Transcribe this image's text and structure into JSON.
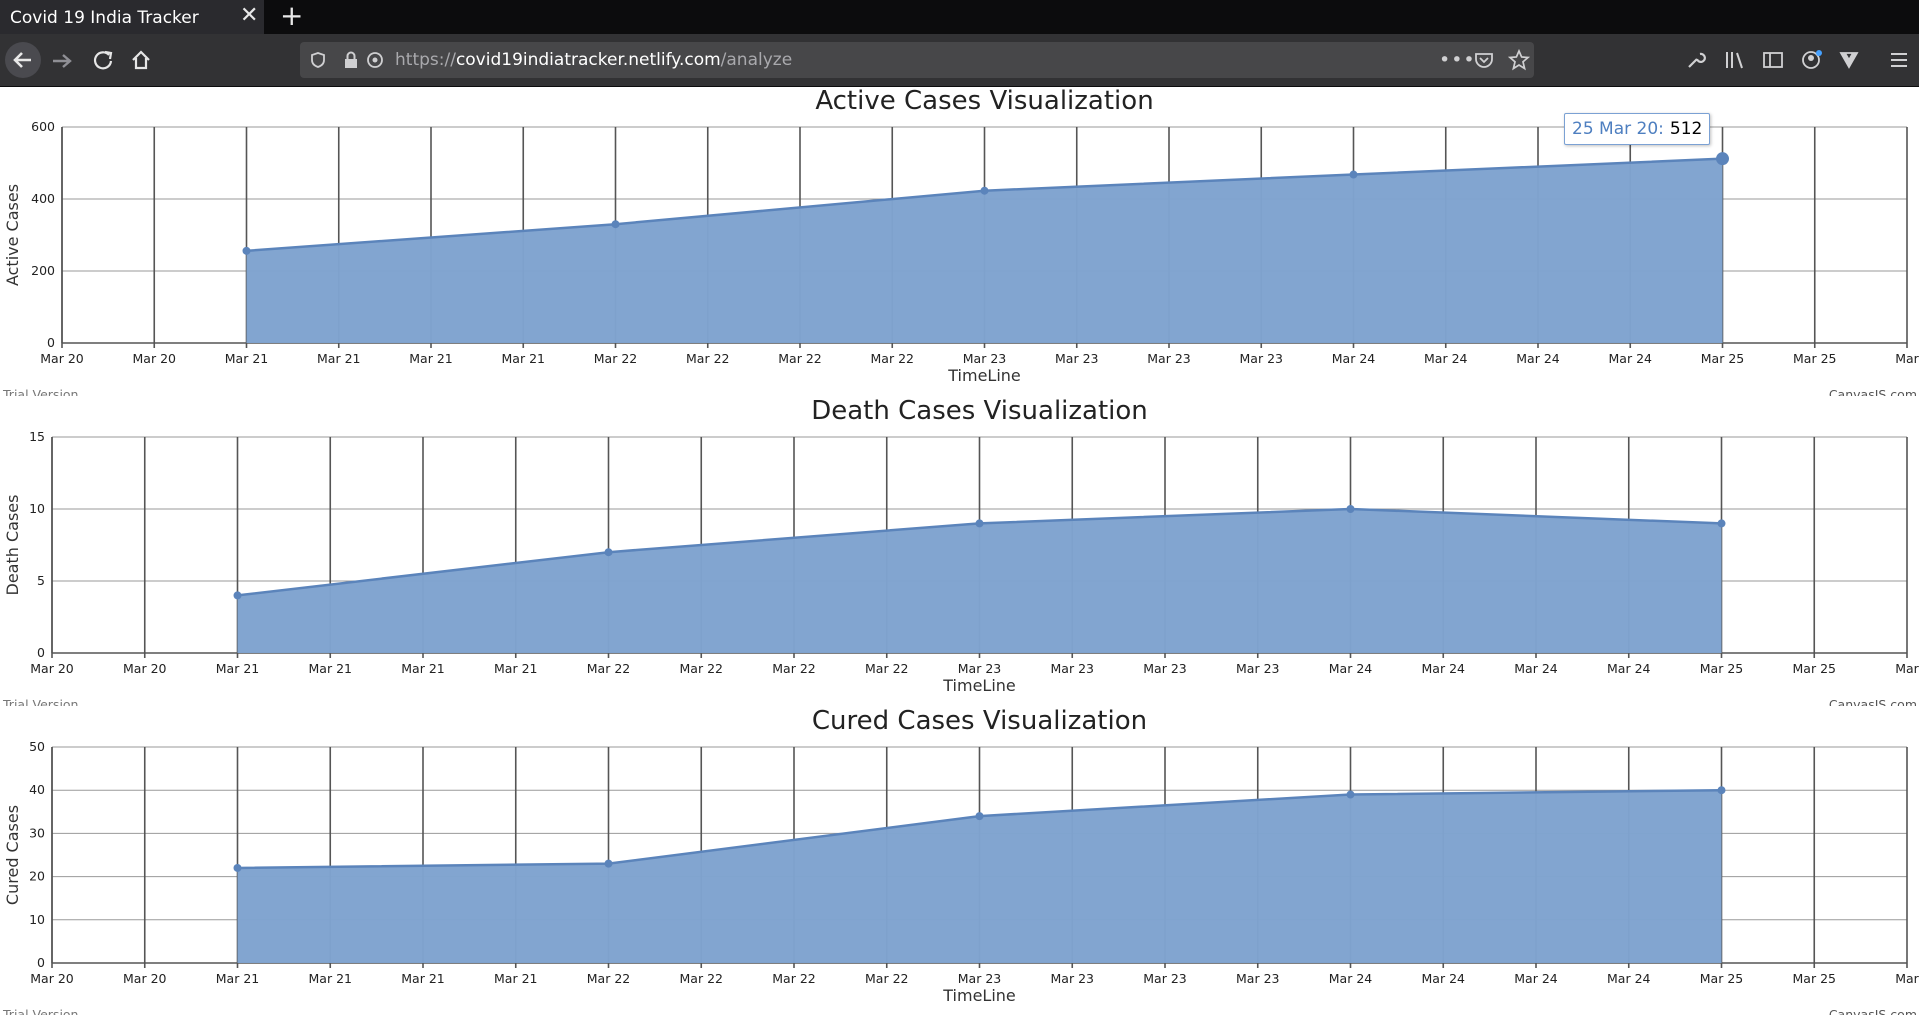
{
  "browser": {
    "tab_title": "Covid 19 India Tracker",
    "tab_close_icon": "close-icon",
    "new_tab_icon": "plus-icon",
    "url_prefix": "https://",
    "url_host": "covid19indiatracker.netlify.com",
    "url_path": "/analyze",
    "icons": [
      "back-arrow-icon",
      "forward-arrow-icon",
      "reload-icon",
      "home-icon",
      "shield-icon",
      "lock-icon",
      "permissions-icon",
      "more-icon",
      "pocket-icon",
      "star-icon",
      "wrench-icon",
      "library-icon",
      "sidebar-icon",
      "account-icon",
      "extension-icon",
      "menu-icon"
    ]
  },
  "tooltip": {
    "date": "25 Mar 20:",
    "value": "512"
  },
  "credits": {
    "left": "Trial Version",
    "right": "CanvasJS.com"
  },
  "colors": {
    "area_fill": "#7fa3cf",
    "line": "#5b84bb",
    "grid": "#505050"
  },
  "chart_data": [
    {
      "type": "area",
      "title": "Active Cases Visualization",
      "xlabel": "TimeLine",
      "ylabel": "Active Cases",
      "ylim": [
        0,
        600
      ],
      "yticks": [
        0,
        200,
        400,
        600
      ],
      "xticks": [
        "Mar 20",
        "Mar 20",
        "Mar 21",
        "Mar 21",
        "Mar 21",
        "Mar 21",
        "Mar 22",
        "Mar 22",
        "Mar 22",
        "Mar 22",
        "Mar 23",
        "Mar 23",
        "Mar 23",
        "Mar 23",
        "Mar 24",
        "Mar 24",
        "Mar 24",
        "Mar 24",
        "Mar 25",
        "Mar 25",
        "Mar"
      ],
      "x": [
        "Mar 21",
        "Mar 22",
        "Mar 23",
        "Mar 24",
        "Mar 25"
      ],
      "values": [
        256,
        330,
        423,
        468,
        512
      ]
    },
    {
      "type": "area",
      "title": "Death Cases Visualization",
      "xlabel": "TimeLine",
      "ylabel": "Death Cases",
      "ylim": [
        0,
        15
      ],
      "yticks": [
        0,
        5,
        10,
        15
      ],
      "xticks": [
        "Mar 20",
        "Mar 20",
        "Mar 21",
        "Mar 21",
        "Mar 21",
        "Mar 21",
        "Mar 22",
        "Mar 22",
        "Mar 22",
        "Mar 22",
        "Mar 23",
        "Mar 23",
        "Mar 23",
        "Mar 23",
        "Mar 24",
        "Mar 24",
        "Mar 24",
        "Mar 24",
        "Mar 25",
        "Mar 25",
        "Mar"
      ],
      "x": [
        "Mar 21",
        "Mar 22",
        "Mar 23",
        "Mar 24",
        "Mar 25"
      ],
      "values": [
        4,
        7,
        9,
        10,
        9
      ]
    },
    {
      "type": "area",
      "title": "Cured Cases Visualization",
      "xlabel": "TimeLine",
      "ylabel": "Cured Cases",
      "ylim": [
        0,
        50
      ],
      "yticks": [
        0,
        10,
        20,
        30,
        40,
        50
      ],
      "xticks": [
        "Mar 20",
        "Mar 20",
        "Mar 21",
        "Mar 21",
        "Mar 21",
        "Mar 21",
        "Mar 22",
        "Mar 22",
        "Mar 22",
        "Mar 22",
        "Mar 23",
        "Mar 23",
        "Mar 23",
        "Mar 23",
        "Mar 24",
        "Mar 24",
        "Mar 24",
        "Mar 24",
        "Mar 25",
        "Mar 25",
        "Mar"
      ],
      "x": [
        "Mar 21",
        "Mar 22",
        "Mar 23",
        "Mar 24",
        "Mar 25"
      ],
      "values": [
        22,
        23,
        34,
        39,
        40
      ]
    }
  ]
}
